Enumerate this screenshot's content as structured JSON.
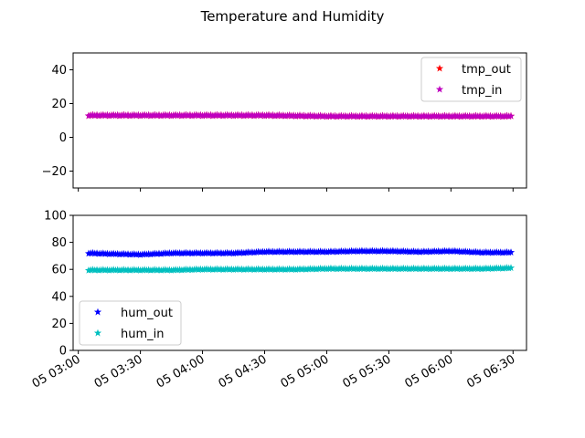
{
  "chart_data": [
    {
      "type": "scatter",
      "title": "Temperature and Humidity",
      "marker": "star",
      "x_range": [
        "05 03:05",
        "05 06:29"
      ],
      "ylim": [
        -30,
        50
      ],
      "yticks": [
        -20,
        0,
        20,
        40
      ],
      "xtick_labels_shown": false,
      "legend": "top-right",
      "series": [
        {
          "name": "tmp_out",
          "color": "#ff0000",
          "x": [
            "05 03:05",
            "05 03:30",
            "05 04:00",
            "05 04:30",
            "05 05:00",
            "05 05:30",
            "05 06:00",
            "05 06:29"
          ],
          "y": [
            13,
            13,
            13,
            13,
            12.5,
            12.5,
            12.5,
            12.5
          ]
        },
        {
          "name": "tmp_in",
          "color": "#bf00bf",
          "x": [
            "05 03:05",
            "05 03:30",
            "05 04:00",
            "05 04:30",
            "05 05:00",
            "05 05:30",
            "05 06:00",
            "05 06:29"
          ],
          "y": [
            13,
            13,
            13,
            13,
            12.5,
            12.5,
            12.5,
            12.5
          ]
        }
      ]
    },
    {
      "type": "scatter",
      "marker": "star",
      "x_range": [
        "05 03:05",
        "05 06:29"
      ],
      "ylim": [
        0,
        100
      ],
      "yticks": [
        0,
        20,
        40,
        60,
        80,
        100
      ],
      "xticks": [
        "05 03:00",
        "05 03:30",
        "05 04:00",
        "05 04:30",
        "05 05:00",
        "05 05:30",
        "05 06:00",
        "05 06:30"
      ],
      "legend": "bottom-left",
      "series": [
        {
          "name": "hum_out",
          "color": "#0000ff",
          "x": [
            "05 03:05",
            "05 03:15",
            "05 03:30",
            "05 03:45",
            "05 04:00",
            "05 04:15",
            "05 04:30",
            "05 04:45",
            "05 05:00",
            "05 05:15",
            "05 05:30",
            "05 05:45",
            "05 06:00",
            "05 06:15",
            "05 06:29"
          ],
          "y": [
            72,
            71.5,
            71,
            72,
            72,
            72,
            73,
            73,
            73,
            73.5,
            73.5,
            73,
            73.5,
            72.5,
            72.5
          ]
        },
        {
          "name": "hum_in",
          "color": "#00bfbf",
          "x": [
            "05 03:05",
            "05 03:15",
            "05 03:30",
            "05 03:45",
            "05 04:00",
            "05 04:15",
            "05 04:30",
            "05 04:45",
            "05 05:00",
            "05 05:15",
            "05 05:30",
            "05 05:45",
            "05 06:00",
            "05 06:15",
            "05 06:29"
          ],
          "y": [
            59.5,
            59.5,
            59.5,
            59.5,
            60,
            60,
            60,
            60,
            60.5,
            60.5,
            60.5,
            60.5,
            60.5,
            60.5,
            61
          ]
        }
      ]
    }
  ]
}
